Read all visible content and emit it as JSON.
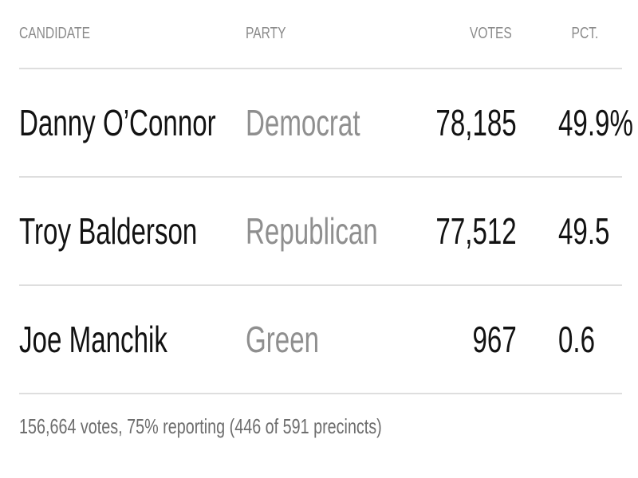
{
  "table": {
    "headers": {
      "candidate": "CANDIDATE",
      "party": "PARTY",
      "votes": "VOTES",
      "pct": "PCT."
    },
    "rows": [
      {
        "candidate": "Danny O’Connor",
        "party": "Democrat",
        "votes": "78,185",
        "pct": "49.9%"
      },
      {
        "candidate": "Troy Balderson",
        "party": "Republican",
        "votes": "77,512",
        "pct": "49.5"
      },
      {
        "candidate": "Joe Manchik",
        "party": "Green",
        "votes": "967",
        "pct": "0.6"
      }
    ],
    "footer": "156,664 votes, 75% reporting (446 of 591 precincts)"
  },
  "colors": {
    "text": "#121212",
    "muted": "#8f8f8f",
    "divider": "#dedede"
  }
}
